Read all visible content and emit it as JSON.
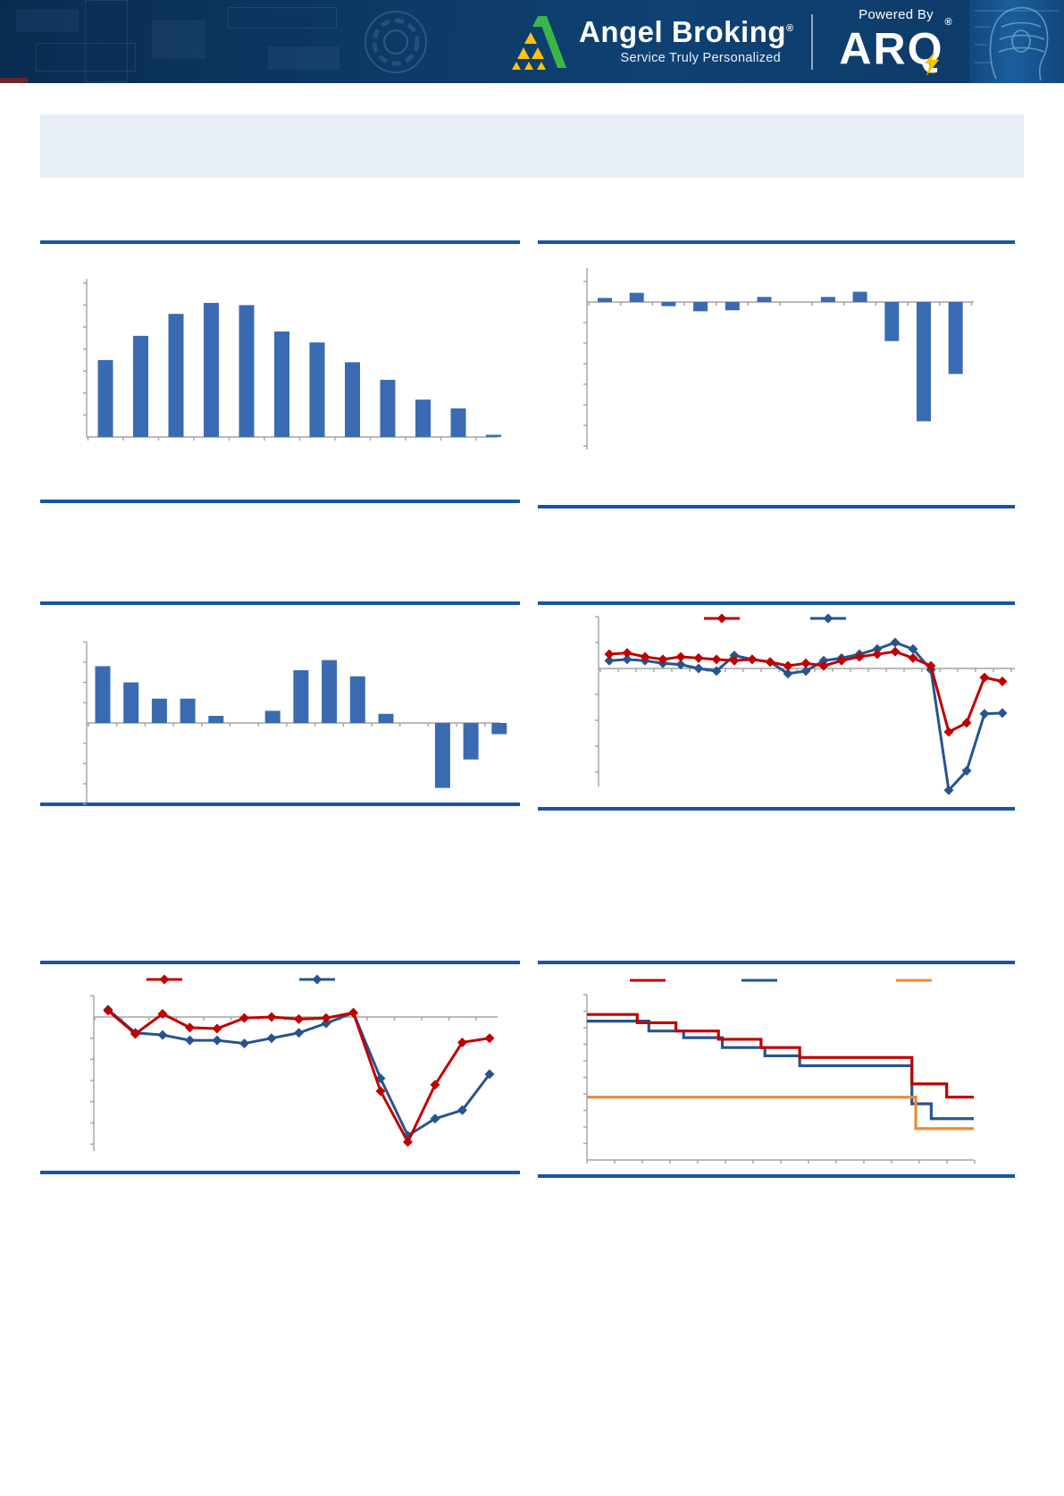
{
  "header": {
    "brand": "Angel Broking",
    "brand_reg": "®",
    "tagline": "Service Truly Personalized",
    "powered_by": "Powered By",
    "arq": "ARQ",
    "arq_reg": "®"
  },
  "title_box": {
    "text": ""
  },
  "colors": {
    "accent_rule_blue": "#1656a4",
    "bar_blue": "#3a6bb2",
    "line_red": "#c00000",
    "line_dark_blue": "#27548f",
    "line_orange": "#ed8a33",
    "axis_gray": "#a3a3a3",
    "header_navy": "#0d3a66",
    "title_box_bg": "#e9eff7",
    "logo_green": "#3bb54a",
    "logo_yellow": "#ffc20e",
    "bolt_yellow": "#f8c200"
  },
  "chart_data": [
    {
      "id": "top-left-column-chart",
      "type": "bar",
      "values": [
        3.5,
        4.6,
        5.6,
        6.1,
        6.0,
        4.8,
        4.3,
        3.4,
        2.6,
        1.7,
        1.3,
        0.1
      ],
      "ylim": [
        0,
        7.2
      ],
      "grid": false,
      "axis_labels_visible": false
    },
    {
      "id": "top-right-column-chart",
      "type": "bar",
      "values": [
        0.2,
        0.45,
        -0.2,
        -0.45,
        -0.4,
        0.25,
        0,
        0.25,
        0.5,
        -1.9,
        -5.8,
        -3.5
      ],
      "ylim": [
        -7.2,
        1.65
      ],
      "grid": false,
      "axis_labels_visible": false
    },
    {
      "id": "middle-left-column-chart",
      "type": "bar",
      "values": [
        2.8,
        2.0,
        1.2,
        1.2,
        0.35,
        0,
        0.6,
        2.6,
        3.1,
        2.3,
        0.45,
        0,
        -3.2,
        -1.8,
        -0.55
      ],
      "ylim": [
        -4.0,
        4.0
      ],
      "grid": false,
      "axis_labels_visible": false
    },
    {
      "id": "middle-right-line-chart",
      "type": "line",
      "marker": "diamond",
      "legend": {
        "position": "top",
        "labels": [
          "",
          ""
        ]
      },
      "series": [
        {
          "name": "blue-series",
          "color_key": "line_dark_blue",
          "values": [
            0.3,
            0.35,
            0.3,
            0.2,
            0.15,
            0.0,
            -0.1,
            0.5,
            0.35,
            0.25,
            -0.2,
            -0.1,
            0.3,
            0.4,
            0.55,
            0.75,
            1.0,
            0.75,
            -0.05,
            -4.7,
            -3.95,
            -1.75,
            -1.72
          ]
        },
        {
          "name": "red-series",
          "color_key": "line_red",
          "values": [
            0.55,
            0.6,
            0.45,
            0.35,
            0.45,
            0.4,
            0.35,
            0.3,
            0.35,
            0.25,
            0.1,
            0.2,
            0.1,
            0.3,
            0.45,
            0.55,
            0.65,
            0.4,
            0.1,
            -2.45,
            -2.1,
            -0.35,
            -0.5
          ]
        }
      ],
      "ylim": [
        -5.4,
        2.0
      ],
      "grid": false,
      "axis_labels_visible": false
    },
    {
      "id": "bottom-left-line-chart",
      "type": "line",
      "marker": "diamond",
      "legend": {
        "position": "top",
        "labels": [
          "",
          ""
        ]
      },
      "series": [
        {
          "name": "blue-series",
          "color_key": "line_dark_blue",
          "values": [
            0.35,
            -0.75,
            -0.85,
            -1.1,
            -1.1,
            -1.25,
            -1.0,
            -0.75,
            -0.3,
            0.2,
            -2.9,
            -5.6,
            -4.8,
            -4.4,
            -2.7
          ]
        },
        {
          "name": "red-series",
          "color_key": "line_red",
          "values": [
            0.3,
            -0.8,
            0.15,
            -0.5,
            -0.55,
            -0.05,
            0.0,
            -0.1,
            -0.05,
            0.2,
            -3.5,
            -5.9,
            -3.2,
            -1.2,
            -1.0
          ]
        }
      ],
      "ylim": [
        -6.3,
        1.0
      ],
      "grid": false,
      "axis_labels_visible": false
    },
    {
      "id": "bottom-right-step-chart",
      "type": "step",
      "legend": {
        "position": "top",
        "labels": [
          "",
          "",
          ""
        ]
      },
      "series": [
        {
          "name": "blue-step",
          "color_key": "line_dark_blue",
          "points": [
            [
              0,
              8.4
            ],
            [
              16,
              8.4
            ],
            [
              16,
              7.8
            ],
            [
              25,
              7.8
            ],
            [
              25,
              7.4
            ],
            [
              35,
              7.4
            ],
            [
              35,
              6.8
            ],
            [
              46,
              6.8
            ],
            [
              46,
              6.3
            ],
            [
              55,
              6.3
            ],
            [
              55,
              5.7
            ],
            [
              84,
              5.7
            ],
            [
              84,
              3.4
            ],
            [
              89,
              3.4
            ],
            [
              89,
              2.5
            ],
            [
              100,
              2.5
            ]
          ]
        },
        {
          "name": "red-step",
          "color_key": "line_red",
          "points": [
            [
              0,
              8.8
            ],
            [
              13,
              8.8
            ],
            [
              13,
              8.3
            ],
            [
              23,
              8.3
            ],
            [
              23,
              7.8
            ],
            [
              34,
              7.8
            ],
            [
              34,
              7.3
            ],
            [
              45,
              7.3
            ],
            [
              45,
              6.8
            ],
            [
              55,
              6.8
            ],
            [
              55,
              6.2
            ],
            [
              84,
              6.2
            ],
            [
              84,
              4.6
            ],
            [
              93,
              4.6
            ],
            [
              93,
              3.8
            ],
            [
              100,
              3.8
            ]
          ]
        },
        {
          "name": "orange-step",
          "color_key": "line_orange",
          "points": [
            [
              0,
              3.8
            ],
            [
              85,
              3.8
            ],
            [
              85,
              1.9
            ],
            [
              100,
              1.9
            ]
          ]
        }
      ],
      "ylim": [
        0,
        10
      ],
      "grid": false,
      "axis_labels_visible": false
    }
  ]
}
